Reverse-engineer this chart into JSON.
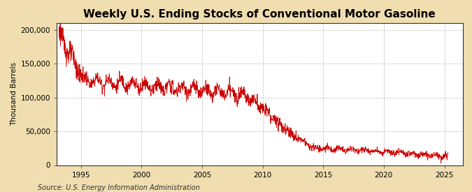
{
  "title": "Weekly U.S. Ending Stocks of Conventional Motor Gasoline",
  "ylabel": "Thousand Barrels",
  "source_text": "Source: U.S. Energy Information Administration",
  "line_color": "#cc0000",
  "background_color": "#f0deb0",
  "plot_bg_color": "#ffffff",
  "grid_color": "#888888",
  "ylim": [
    0,
    210000
  ],
  "yticks": [
    0,
    50000,
    100000,
    150000,
    200000
  ],
  "ytick_labels": [
    "0",
    "50,000",
    "100,000",
    "150,000",
    "200,000"
  ],
  "xlim": [
    1993.0,
    2026.5
  ],
  "xtick_years": [
    1995,
    2000,
    2005,
    2010,
    2015,
    2020,
    2025
  ],
  "title_fontsize": 11,
  "label_fontsize": 7.5,
  "tick_fontsize": 7.5,
  "source_fontsize": 7
}
